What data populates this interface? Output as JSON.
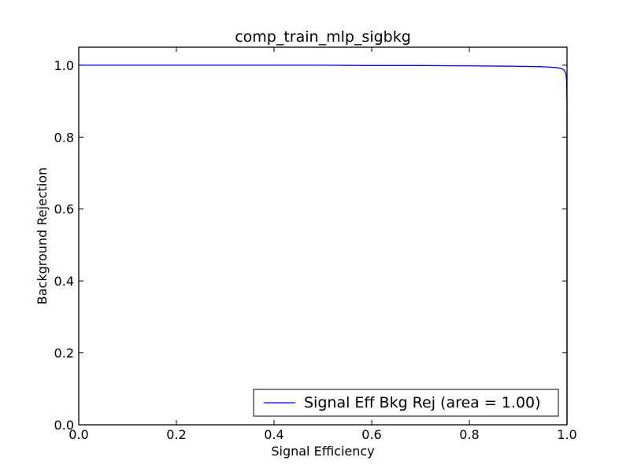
{
  "chart_data": {
    "type": "line",
    "title": "comp_train_mlp_sigbkg",
    "xlabel": "Signal Efficiency",
    "ylabel": "Background Rejection",
    "xlim": [
      0.0,
      1.0
    ],
    "ylim": [
      0.0,
      1.05
    ],
    "xticks": [
      "0.0",
      "0.2",
      "0.4",
      "0.6",
      "0.8",
      "1.0"
    ],
    "yticks": [
      "0.0",
      "0.2",
      "0.4",
      "0.6",
      "0.8",
      "1.0"
    ],
    "grid": false,
    "legend_position": "lower-right",
    "series": [
      {
        "name": "Signal Eff Bkg Rej (area = 1.00)",
        "color": "#0000ff",
        "x": [
          0.0,
          0.1,
          0.2,
          0.3,
          0.4,
          0.5,
          0.6,
          0.7,
          0.8,
          0.9,
          0.94,
          0.96,
          0.98,
          0.99,
          0.995,
          0.998,
          0.999,
          1.0,
          1.0
        ],
        "y": [
          1.0,
          1.0,
          1.0,
          1.0,
          1.0,
          1.0,
          0.999,
          0.999,
          0.998,
          0.997,
          0.996,
          0.995,
          0.993,
          0.99,
          0.985,
          0.975,
          0.96,
          0.9,
          0.0
        ]
      }
    ]
  }
}
